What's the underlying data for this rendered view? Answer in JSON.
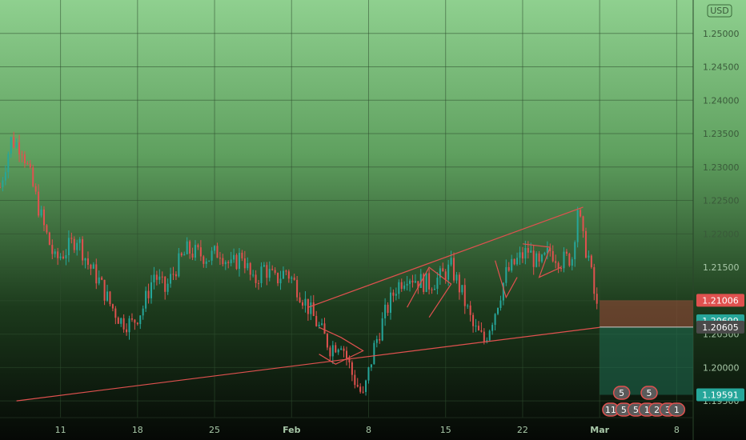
{
  "chart_data": {
    "type": "candlestick",
    "instrument_badge": "USD",
    "ylim": [
      1.1925,
      1.255
    ],
    "y_ticks": [
      "1.25000",
      "1.24500",
      "1.24000",
      "1.23500",
      "1.23000",
      "1.22500",
      "1.22000",
      "1.21500",
      "1.21000",
      "1.20500",
      "1.20000",
      "1.19500"
    ],
    "y_tick_values": [
      1.25,
      1.245,
      1.24,
      1.235,
      1.23,
      1.225,
      1.22,
      1.215,
      1.21,
      1.205,
      1.2,
      1.195
    ],
    "x_ticks": [
      {
        "label": "11",
        "day": 11
      },
      {
        "label": "18",
        "day": 18
      },
      {
        "label": "25",
        "day": 25
      },
      {
        "label": "Feb",
        "day": 32
      },
      {
        "label": "8",
        "day": 39
      },
      {
        "label": "15",
        "day": 46
      },
      {
        "label": "22",
        "day": 53
      },
      {
        "label": "Mar",
        "day": 60
      },
      {
        "label": "8",
        "day": 67
      }
    ],
    "xlim_days": [
      5.5,
      68.5
    ],
    "price_labels": [
      {
        "text": "1.21006",
        "value": 1.21006,
        "color": "#e0514f"
      },
      {
        "text": "1.20699",
        "value": 1.20699,
        "color": "#26a69a"
      },
      {
        "text": "1.20605",
        "value": 1.20605,
        "color": "#4a4a4a"
      },
      {
        "text": "1.19591",
        "value": 1.19591,
        "color": "#26a69a"
      }
    ],
    "position": {
      "entry": 1.20605,
      "stop": 1.21006,
      "target": 1.19591,
      "start_day": 60.0,
      "end_day": 68.5
    },
    "trend_lines": [
      {
        "from": [
          7.0,
          1.195
        ],
        "to": [
          60.0,
          1.206
        ],
        "color": "#e0514f"
      },
      {
        "from": [
          33.5,
          1.209
        ],
        "to": [
          58.5,
          1.224
        ],
        "color": "#e0514f"
      }
    ],
    "patterns": [
      [
        [
          34.5,
          1.206
        ],
        [
          36.5,
          1.2045
        ],
        [
          38.5,
          1.2025
        ],
        [
          36.0,
          1.2005
        ],
        [
          34.5,
          1.202
        ]
      ],
      [
        [
          42.5,
          1.209
        ],
        [
          44.5,
          1.215
        ],
        [
          46.5,
          1.2125
        ],
        [
          44.5,
          1.2075
        ]
      ],
      [
        [
          50.5,
          1.216
        ],
        [
          51.5,
          1.2105
        ],
        [
          52.5,
          1.2135
        ]
      ],
      [
        [
          53.0,
          1.2185
        ],
        [
          55.5,
          1.218
        ],
        [
          54.5,
          1.2135
        ],
        [
          56.5,
          1.215
        ]
      ]
    ],
    "candles_close_path": [
      [
        5.5,
        1.227
      ],
      [
        6.5,
        1.234
      ],
      [
        7.5,
        1.233
      ],
      [
        8.5,
        1.227
      ],
      [
        9.5,
        1.221
      ],
      [
        10.5,
        1.216
      ],
      [
        11.5,
        1.2175
      ],
      [
        12.5,
        1.2195
      ],
      [
        13.5,
        1.2155
      ],
      [
        14.5,
        1.213
      ],
      [
        15.5,
        1.2095
      ],
      [
        16.5,
        1.207
      ],
      [
        17.5,
        1.2065
      ],
      [
        18.5,
        1.209
      ],
      [
        19.5,
        1.214
      ],
      [
        20.5,
        1.2115
      ],
      [
        21.5,
        1.215
      ],
      [
        22.5,
        1.2175
      ],
      [
        23.5,
        1.217
      ],
      [
        24.5,
        1.2165
      ],
      [
        25.5,
        1.2175
      ],
      [
        26.5,
        1.215
      ],
      [
        27.5,
        1.217
      ],
      [
        28.5,
        1.2125
      ],
      [
        29.5,
        1.215
      ],
      [
        30.5,
        1.213
      ],
      [
        31.5,
        1.2145
      ],
      [
        32.5,
        1.212
      ],
      [
        33.5,
        1.209
      ],
      [
        34.5,
        1.206
      ],
      [
        35.5,
        1.203
      ],
      [
        36.5,
        1.204
      ],
      [
        37.5,
        1.199
      ],
      [
        38.5,
        1.1955
      ],
      [
        39.5,
        1.203
      ],
      [
        40.5,
        1.208
      ],
      [
        41.5,
        1.212
      ],
      [
        42.5,
        1.214
      ],
      [
        43.5,
        1.213
      ],
      [
        44.5,
        1.2125
      ],
      [
        45.5,
        1.2135
      ],
      [
        46.5,
        1.215
      ],
      [
        47.5,
        1.211
      ],
      [
        48.5,
        1.206
      ],
      [
        49.5,
        1.204
      ],
      [
        50.5,
        1.2085
      ],
      [
        51.5,
        1.214
      ],
      [
        52.5,
        1.216
      ],
      [
        53.5,
        1.2175
      ],
      [
        54.5,
        1.215
      ],
      [
        55.5,
        1.2175
      ],
      [
        56.5,
        1.216
      ],
      [
        57.5,
        1.2165
      ],
      [
        58.0,
        1.224
      ],
      [
        58.5,
        1.219
      ],
      [
        59.0,
        1.2165
      ],
      [
        59.5,
        1.211
      ],
      [
        60.0,
        1.2065
      ]
    ],
    "indicators": [
      {
        "text": "5",
        "day": 62.0
      },
      {
        "text": "5",
        "day": 64.5
      },
      {
        "text": "11",
        "day": 61.0
      },
      {
        "text": "5",
        "day": 62.2
      },
      {
        "text": "5",
        "day": 63.3
      },
      {
        "text": "1",
        "day": 64.3
      },
      {
        "text": "2",
        "day": 65.2
      },
      {
        "text": "3",
        "day": 66.2
      },
      {
        "text": "1",
        "day": 67.0
      }
    ]
  },
  "colors": {
    "bull": "#26a69a",
    "bear": "#e0514f",
    "grid": "#2f4f2f",
    "bg_top": "#8fd08f",
    "bg_bottom": "#050805"
  }
}
